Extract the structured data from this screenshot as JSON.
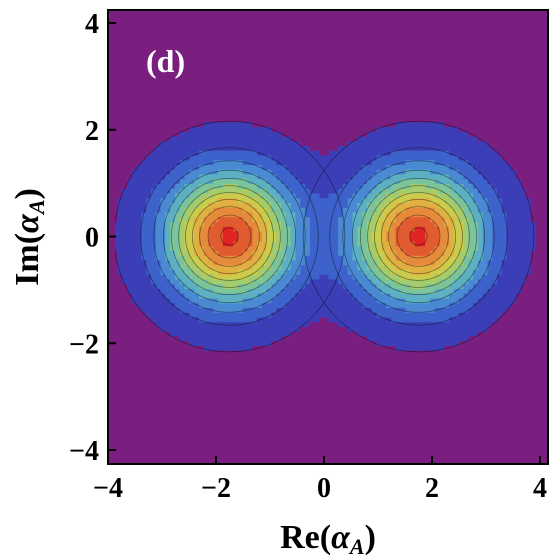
{
  "chart_data": {
    "type": "contour",
    "panel_label": "(d)",
    "xlabel_prefix": "Re(",
    "ylabel_prefix": "Im(",
    "label_symbol": "α",
    "label_subscript": "A",
    "label_suffix": ")",
    "xlim": [
      -4,
      4
    ],
    "ylim": [
      -4,
      4
    ],
    "x_ticks": [
      {
        "value": -4,
        "label": "−4"
      },
      {
        "value": -2,
        "label": "−2"
      },
      {
        "value": 0,
        "label": "0"
      },
      {
        "value": 2,
        "label": "2"
      },
      {
        "value": 4,
        "label": "4"
      }
    ],
    "y_ticks": [
      {
        "value": -4,
        "label": "−4"
      },
      {
        "value": -2,
        "label": "−2"
      },
      {
        "value": 0,
        "label": "0"
      },
      {
        "value": 2,
        "label": "2"
      },
      {
        "value": 4,
        "label": "4"
      }
    ],
    "peaks": [
      {
        "x": -1.75,
        "y": 0
      },
      {
        "x": 1.75,
        "y": 0
      }
    ],
    "levels": 13,
    "background_color": "#7a1f80",
    "peak_color": "#e02424",
    "colormap": [
      "#7a1f80",
      "#3c3eb8",
      "#3e62cc",
      "#4a8ad2",
      "#5cb0c2",
      "#7cc49a",
      "#a4cc6c",
      "#cccc4c",
      "#e0b043",
      "#e68a3c",
      "#e05c30",
      "#e02424"
    ],
    "grid": false
  }
}
